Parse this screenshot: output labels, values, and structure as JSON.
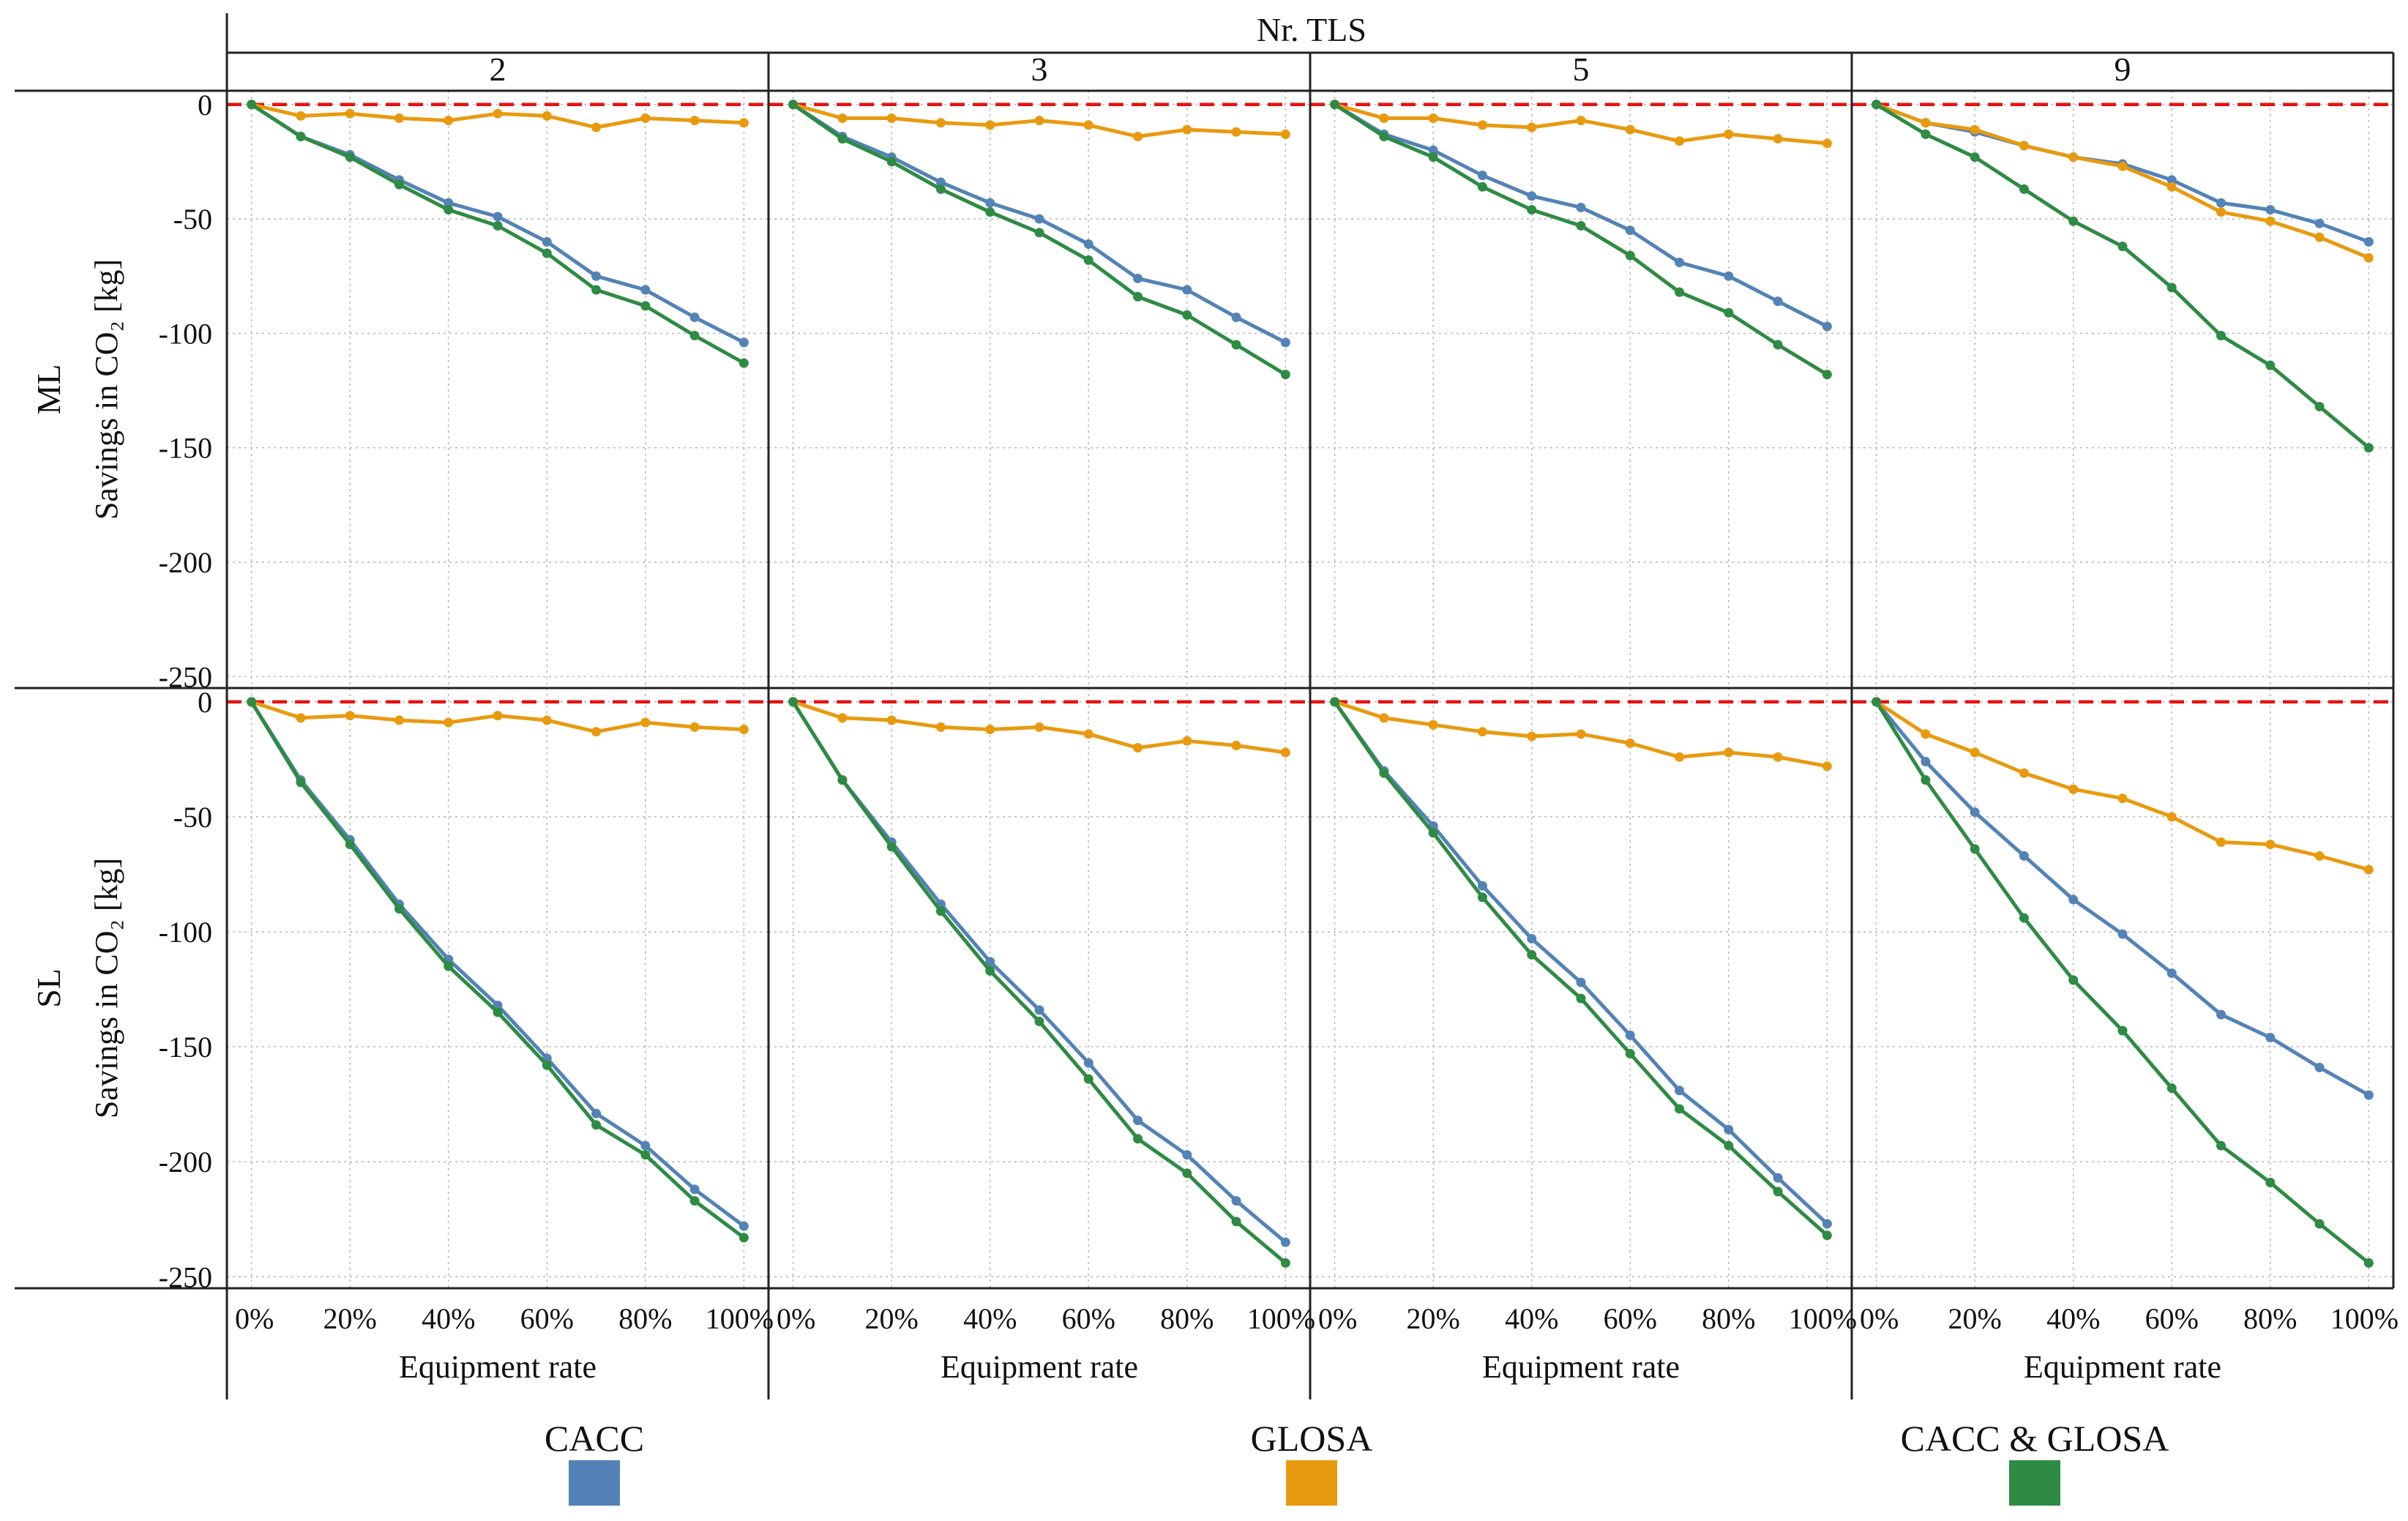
{
  "chart_data": {
    "type": "line",
    "facet_title": "Nr. TLS",
    "columns": [
      "2",
      "3",
      "5",
      "9"
    ],
    "rows": [
      "ML",
      "SL"
    ],
    "ylabel": "Savings in CO₂ [kg]",
    "xlabel": "Equipment rate",
    "x": [
      0,
      10,
      20,
      30,
      40,
      50,
      60,
      70,
      80,
      90,
      100
    ],
    "x_tick_labels": [
      "0%",
      "20%",
      "40%",
      "60%",
      "80%",
      "100%"
    ],
    "x_tick_values": [
      0,
      20,
      40,
      60,
      80,
      100
    ],
    "xlim": [
      -5,
      105
    ],
    "y_ticks": [
      0,
      -50,
      -100,
      -150,
      -200,
      -250
    ],
    "ylim": [
      -255,
      6
    ],
    "zero_line": {
      "value": 0,
      "color": "#e8110f"
    },
    "legend": [
      {
        "name": "CACC",
        "color": "#5383b6"
      },
      {
        "name": "GLOSA",
        "color": "#e89a0f"
      },
      {
        "name": "CACC & GLOSA",
        "color": "#2e8b43"
      }
    ],
    "panels": {
      "ML": {
        "2": {
          "CACC": [
            0,
            -14,
            -22,
            -33,
            -43,
            -49,
            -60,
            -75,
            -81,
            -93,
            -104
          ],
          "GLOSA": [
            0,
            -5,
            -4,
            -6,
            -7,
            -4,
            -5,
            -10,
            -6,
            -7,
            -8
          ],
          "CACC & GLOSA": [
            0,
            -14,
            -23,
            -35,
            -46,
            -53,
            -65,
            -81,
            -88,
            -101,
            -113
          ]
        },
        "3": {
          "CACC": [
            0,
            -14,
            -23,
            -34,
            -43,
            -50,
            -61,
            -76,
            -81,
            -93,
            -104
          ],
          "GLOSA": [
            0,
            -6,
            -6,
            -8,
            -9,
            -7,
            -9,
            -14,
            -11,
            -12,
            -13
          ],
          "CACC & GLOSA": [
            0,
            -15,
            -25,
            -37,
            -47,
            -56,
            -68,
            -84,
            -92,
            -105,
            -118
          ]
        },
        "5": {
          "CACC": [
            0,
            -13,
            -20,
            -31,
            -40,
            -45,
            -55,
            -69,
            -75,
            -86,
            -97
          ],
          "GLOSA": [
            0,
            -6,
            -6,
            -9,
            -10,
            -7,
            -11,
            -16,
            -13,
            -15,
            -17
          ],
          "CACC & GLOSA": [
            0,
            -14,
            -23,
            -36,
            -46,
            -53,
            -66,
            -82,
            -91,
            -105,
            -118
          ]
        },
        "9": {
          "CACC": [
            0,
            -8,
            -12,
            -18,
            -23,
            -26,
            -33,
            -43,
            -46,
            -52,
            -60
          ],
          "GLOSA": [
            0,
            -8,
            -11,
            -18,
            -23,
            -27,
            -36,
            -47,
            -51,
            -58,
            -67
          ],
          "CACC & GLOSA": [
            0,
            -13,
            -23,
            -37,
            -51,
            -62,
            -80,
            -101,
            -114,
            -132,
            -150
          ]
        }
      },
      "SL": {
        "2": {
          "CACC": [
            0,
            -34,
            -60,
            -88,
            -112,
            -132,
            -155,
            -179,
            -193,
            -212,
            -228
          ],
          "GLOSA": [
            0,
            -7,
            -6,
            -8,
            -9,
            -6,
            -8,
            -13,
            -9,
            -11,
            -12
          ],
          "CACC & GLOSA": [
            0,
            -35,
            -62,
            -90,
            -115,
            -135,
            -158,
            -184,
            -197,
            -217,
            -233
          ]
        },
        "3": {
          "CACC": [
            0,
            -34,
            -61,
            -88,
            -113,
            -134,
            -157,
            -182,
            -197,
            -217,
            -235
          ],
          "GLOSA": [
            0,
            -7,
            -8,
            -11,
            -12,
            -11,
            -14,
            -20,
            -17,
            -19,
            -22
          ],
          "CACC & GLOSA": [
            0,
            -34,
            -63,
            -91,
            -117,
            -139,
            -164,
            -190,
            -205,
            -226,
            -244
          ]
        },
        "5": {
          "CACC": [
            0,
            -30,
            -54,
            -80,
            -103,
            -122,
            -145,
            -169,
            -186,
            -207,
            -227
          ],
          "GLOSA": [
            0,
            -7,
            -10,
            -13,
            -15,
            -14,
            -18,
            -24,
            -22,
            -24,
            -28
          ],
          "CACC & GLOSA": [
            0,
            -31,
            -57,
            -85,
            -110,
            -129,
            -153,
            -177,
            -193,
            -213,
            -232
          ]
        },
        "9": {
          "CACC": [
            0,
            -26,
            -48,
            -67,
            -86,
            -101,
            -118,
            -136,
            -146,
            -159,
            -171
          ],
          "GLOSA": [
            0,
            -14,
            -22,
            -31,
            -38,
            -42,
            -50,
            -61,
            -62,
            -67,
            -73
          ],
          "CACC & GLOSA": [
            0,
            -34,
            -64,
            -94,
            -121,
            -143,
            -168,
            -193,
            -209,
            -227,
            -244
          ]
        }
      }
    }
  }
}
